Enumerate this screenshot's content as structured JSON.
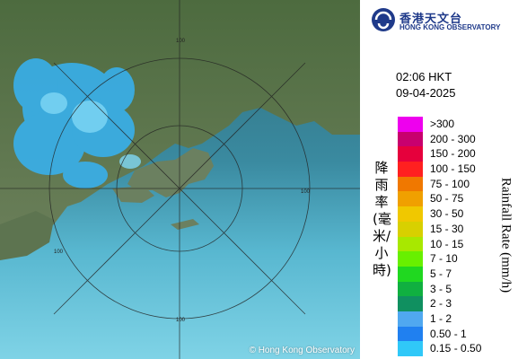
{
  "map": {
    "copyright": "© Hong Kong Observatory",
    "range_labels": [
      "100",
      "100",
      "100",
      "100"
    ]
  },
  "header": {
    "logo_chinese": "香港天文台",
    "logo_english": "HONG KONG OBSERVATORY"
  },
  "timestamp": {
    "time": "02:06 HKT",
    "date": "09-04-2025"
  },
  "legend": {
    "axis_label_chinese": "降雨率(毫米/小時)",
    "axis_label_english": "Rainfall Rate (mm/h)",
    "items": [
      {
        "label": ">300",
        "color": "#ee00ee"
      },
      {
        "label": "200 - 300",
        "color": "#c8006e"
      },
      {
        "label": "150 - 200",
        "color": "#e6003c"
      },
      {
        "label": "100 - 150",
        "color": "#ff2020"
      },
      {
        "label": "75 - 100",
        "color": "#f07800"
      },
      {
        "label": "50 - 75",
        "color": "#f0a000"
      },
      {
        "label": "30 - 50",
        "color": "#f0c800"
      },
      {
        "label": "15 - 30",
        "color": "#d8d000"
      },
      {
        "label": "10 - 15",
        "color": "#a8e800"
      },
      {
        "label": "7 - 10",
        "color": "#68f000"
      },
      {
        "label": "5 - 7",
        "color": "#20d820"
      },
      {
        "label": "3 - 5",
        "color": "#10b040"
      },
      {
        "label": "2 - 3",
        "color": "#109060"
      },
      {
        "label": "1 - 2",
        "color": "#50a8f0"
      },
      {
        "label": "0.50 - 1",
        "color": "#2080f0"
      },
      {
        "label": "0.15 - 0.50",
        "color": "#30c8f8"
      }
    ]
  }
}
